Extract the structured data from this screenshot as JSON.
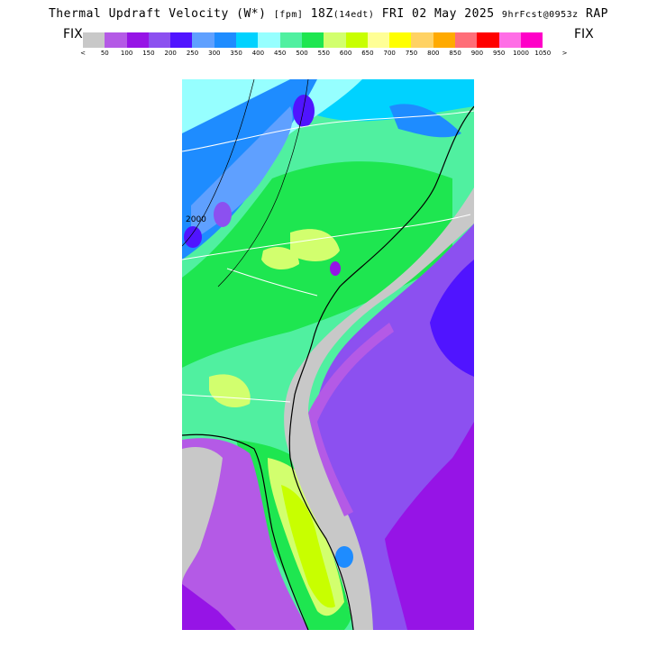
{
  "header": {
    "title_main": "Thermal Updraft Velocity (W*)",
    "title_unit": "[fpm]",
    "title_time": "18Z",
    "title_local": "(14edt)",
    "title_date": "FRI 02 May 2025",
    "title_fcst": "9hrFcst@0953z",
    "title_model": "RAP"
  },
  "legend": {
    "fix_left": "FIX",
    "fix_right": "FIX",
    "less_symbol": "<",
    "greater_symbol": ">",
    "ticks": [
      "50",
      "100",
      "150",
      "200",
      "250",
      "300",
      "350",
      "400",
      "450",
      "500",
      "550",
      "600",
      "650",
      "700",
      "750",
      "800",
      "850",
      "900",
      "950",
      "1000",
      "1050"
    ],
    "colors": [
      "#c8c8c8",
      "#b45ae6",
      "#9614e6",
      "#8c50f0",
      "#5014ff",
      "#5fa0ff",
      "#1e8cff",
      "#00d2ff",
      "#96ffff",
      "#50f0a0",
      "#1ee650",
      "#d2ff6e",
      "#c8ff00",
      "#ffff96",
      "#ffff00",
      "#ffd264",
      "#ffaa00",
      "#ff6e78",
      "#ff0000",
      "#ff6ee6",
      "#ff00c8"
    ]
  },
  "map": {
    "contour_label": "2000"
  }
}
